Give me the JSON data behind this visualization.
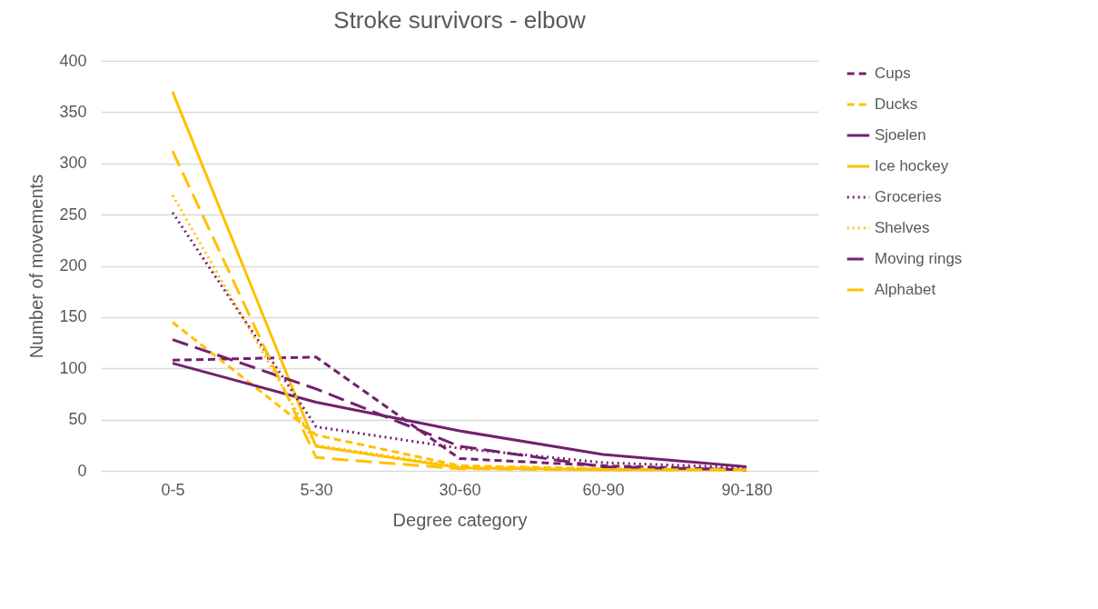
{
  "chart_data": {
    "type": "line",
    "title": "Stroke survivors - elbow",
    "xlabel": "Degree category",
    "ylabel": "Number of movements",
    "categories": [
      "0-5",
      "5-30",
      "30-60",
      "60-90",
      "90-180"
    ],
    "ylim": [
      0,
      400
    ],
    "yticks": [
      0,
      50,
      100,
      150,
      200,
      250,
      300,
      350,
      400
    ],
    "grid": "y",
    "legend": "right",
    "marker": "none",
    "series": [
      {
        "name": "Cups",
        "color": "#74206e",
        "line_style": "dashed",
        "values": [
          108,
          111,
          12,
          5,
          1
        ]
      },
      {
        "name": "Ducks",
        "color": "#ffc000",
        "line_style": "dashed",
        "values": [
          145,
          35,
          5,
          2,
          1
        ]
      },
      {
        "name": "Sjoelen",
        "color": "#74206e",
        "line_style": "solid",
        "values": [
          105,
          67,
          39,
          16,
          4
        ]
      },
      {
        "name": "Ice hockey",
        "color": "#ffc000",
        "line_style": "solid",
        "values": [
          370,
          24,
          3,
          1,
          1
        ]
      },
      {
        "name": "Groceries",
        "color": "#74206e",
        "line_style": "dotted",
        "values": [
          252,
          43,
          22,
          8,
          3
        ]
      },
      {
        "name": "Shelves",
        "color": "#ffc000",
        "line_style": "dotted",
        "values": [
          269,
          25,
          4,
          2,
          1
        ]
      },
      {
        "name": "Moving rings",
        "color": "#74206e",
        "line_style": "long dashed",
        "values": [
          128,
          80,
          24,
          4,
          1
        ]
      },
      {
        "name": "Alphabet",
        "color": "#ffc000",
        "line_style": "long dashed",
        "values": [
          312,
          13,
          2,
          1,
          1
        ]
      }
    ]
  }
}
